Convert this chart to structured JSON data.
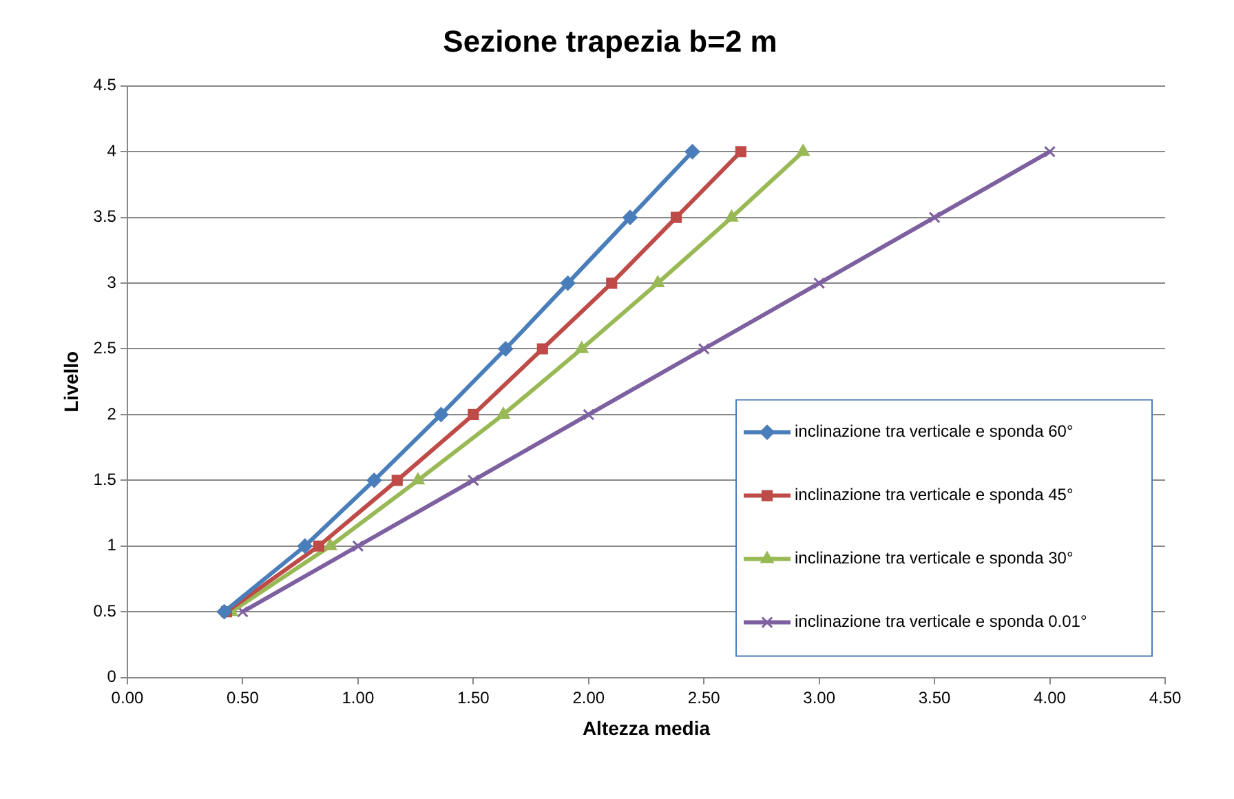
{
  "chart_data": {
    "type": "line",
    "title": "Sezione trapezia b=2 m",
    "xlabel": "Altezza media",
    "ylabel": "Livello",
    "xlim": [
      0,
      4.5
    ],
    "xticks": [
      {
        "value": 0,
        "label": "0.00"
      },
      {
        "value": 0.5,
        "label": "0.50"
      },
      {
        "value": 1,
        "label": "1.00"
      },
      {
        "value": 1.5,
        "label": "1.50"
      },
      {
        "value": 2,
        "label": "2.00"
      },
      {
        "value": 2.5,
        "label": "2.50"
      },
      {
        "value": 3,
        "label": "3.00"
      },
      {
        "value": 3.5,
        "label": "3.50"
      },
      {
        "value": 4,
        "label": "4.00"
      },
      {
        "value": 4.5,
        "label": "4.50"
      }
    ],
    "ylim": [
      0,
      4.5
    ],
    "yticks": [
      0,
      0.5,
      1,
      1.5,
      2,
      2.5,
      3,
      3.5,
      4,
      4.5
    ],
    "grid": "y",
    "legend": "bottom right",
    "line_style": "solid",
    "series": [
      {
        "name": "inclinazione tra verticale e sponda 60°",
        "color": "#4a7ebb",
        "marker": "diamond",
        "x": [
          0.42,
          0.77,
          1.07,
          1.36,
          1.64,
          1.91,
          2.18,
          2.45
        ],
        "values": [
          0.5,
          1,
          1.5,
          2,
          2.5,
          3,
          3.5,
          4
        ]
      },
      {
        "name": "inclinazione tra verticale e sponda 45°",
        "color": "#be4b48",
        "marker": "square",
        "x": [
          0.43,
          0.83,
          1.17,
          1.5,
          1.8,
          2.1,
          2.38,
          2.66
        ],
        "values": [
          0.5,
          1,
          1.5,
          2,
          2.5,
          3,
          3.5,
          4
        ]
      },
      {
        "name": "inclinazione tra verticale e sponda 30°",
        "color": "#98b954",
        "marker": "triangle",
        "x": [
          0.45,
          0.88,
          1.26,
          1.63,
          1.97,
          2.3,
          2.62,
          2.93
        ],
        "values": [
          0.5,
          1,
          1.5,
          2,
          2.5,
          3,
          3.5,
          4
        ]
      },
      {
        "name": "inclinazione tra verticale e sponda 0.01°",
        "color": "#7d60a0",
        "marker": "cross",
        "x": [
          0.5,
          1,
          1.5,
          2,
          2.5,
          3,
          3.5,
          4
        ],
        "values": [
          0.5,
          1,
          1.5,
          2,
          2.5,
          3,
          3.5,
          4
        ]
      }
    ]
  }
}
